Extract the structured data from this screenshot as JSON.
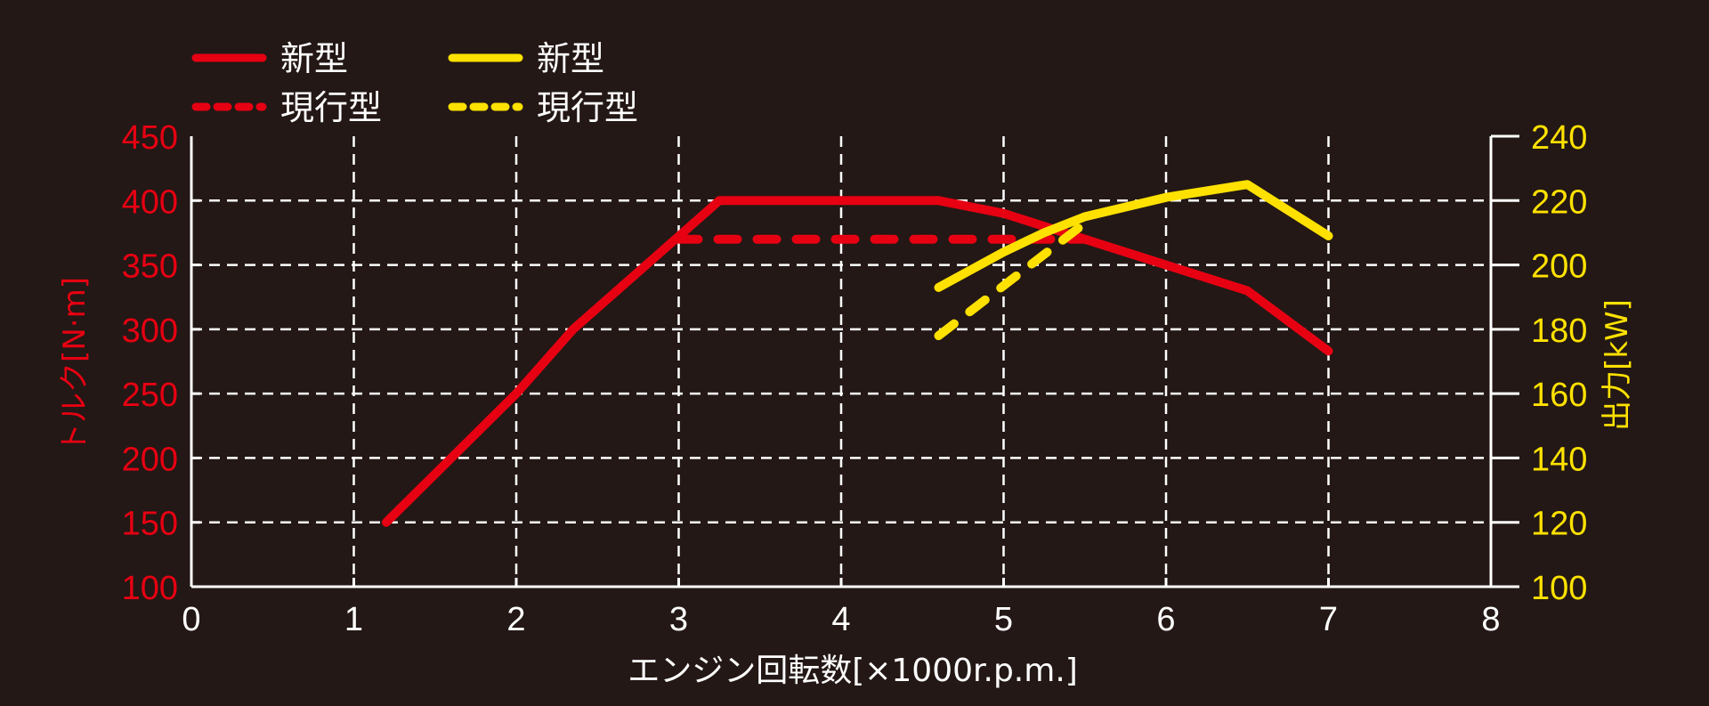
{
  "chart_data": {
    "type": "line",
    "title": "",
    "xlabel": "エンジン回転数[×1000r.p.m.]",
    "ylabel_left": "トルク[N·m]",
    "ylabel_right": "出力[kW]",
    "xlim": [
      0,
      8
    ],
    "ylim_left": [
      100,
      450
    ],
    "ylim_right": [
      100,
      240
    ],
    "x_ticks": [
      "0",
      "1",
      "2",
      "3",
      "4",
      "5",
      "6",
      "7",
      "8"
    ],
    "y_ticks_left": [
      "100",
      "150",
      "200",
      "250",
      "300",
      "350",
      "400",
      "450"
    ],
    "y_ticks_right": [
      "100",
      "120",
      "140",
      "160",
      "180",
      "200",
      "220",
      "240"
    ],
    "grid": true,
    "legend_position": "top-left",
    "colors": {
      "torque": "#e60012",
      "power": "#ffe100",
      "background": "#231815",
      "grid": "#ffffff"
    },
    "legend": [
      {
        "label": "新型",
        "color": "#e60012",
        "style": "solid"
      },
      {
        "label": "現行型",
        "color": "#e60012",
        "style": "dashed"
      },
      {
        "label": "新型",
        "color": "#ffe100",
        "style": "solid"
      },
      {
        "label": "現行型",
        "color": "#ffe100",
        "style": "dashed"
      }
    ],
    "series": [
      {
        "name": "新型 トルク",
        "axis": "left",
        "color": "#e60012",
        "style": "solid",
        "x": [
          1.2,
          2.0,
          2.35,
          3.25,
          4.6,
          5.0,
          5.5,
          6.0,
          6.5,
          7.0
        ],
        "values": [
          150,
          250,
          300,
          400,
          400,
          390,
          370,
          350,
          330,
          283
        ]
      },
      {
        "name": "現行型 トルク",
        "axis": "left",
        "color": "#e60012",
        "style": "dashed",
        "x": [
          3.0,
          5.5
        ],
        "values": [
          370,
          370
        ]
      },
      {
        "name": "新型 出力",
        "axis": "right",
        "color": "#ffe100",
        "style": "solid",
        "x": [
          4.6,
          5.0,
          5.25,
          5.5,
          6.0,
          6.5,
          7.0
        ],
        "values": [
          193,
          204,
          210,
          215,
          221,
          225,
          209
        ]
      },
      {
        "name": "現行型 出力",
        "axis": "right",
        "color": "#ffe100",
        "style": "dashed",
        "x": [
          4.6,
          5.5
        ],
        "values": [
          178,
          213
        ]
      }
    ]
  }
}
